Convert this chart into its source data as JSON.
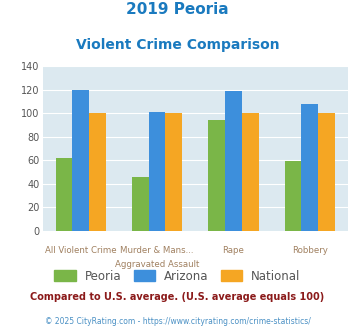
{
  "title_line1": "2019 Peoria",
  "title_line2": "Violent Crime Comparison",
  "title_color": "#1a7abf",
  "cat_labels_top": [
    "",
    "Murder & Mans...",
    "",
    ""
  ],
  "cat_labels_bot": [
    "All Violent Crime",
    "Aggravated Assault",
    "Rape",
    "Robbery"
  ],
  "peoria_values": [
    62,
    46,
    94,
    59
  ],
  "arizona_values": [
    120,
    101,
    119,
    108
  ],
  "national_values": [
    100,
    100,
    100,
    100
  ],
  "peoria_color": "#7ab648",
  "arizona_color": "#3d8fdc",
  "national_color": "#f5a623",
  "ylim": [
    0,
    140
  ],
  "yticks": [
    0,
    20,
    40,
    60,
    80,
    100,
    120,
    140
  ],
  "chart_bg": "#dce9f0",
  "legend_labels": [
    "Peoria",
    "Arizona",
    "National"
  ],
  "footnote1": "Compared to U.S. average. (U.S. average equals 100)",
  "footnote2": "© 2025 CityRating.com - https://www.cityrating.com/crime-statistics/",
  "footnote1_color": "#8b1a1a",
  "footnote2_color": "#4a90c4",
  "legend_text_color": "#555555"
}
